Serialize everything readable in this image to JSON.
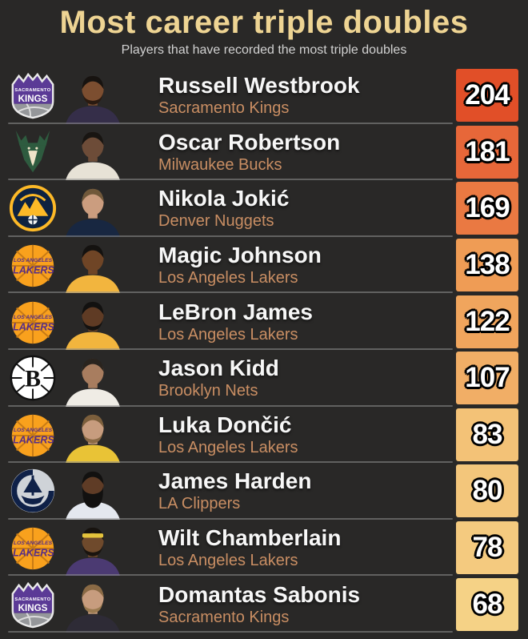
{
  "page": {
    "background_color": "#292827",
    "title_color": "#eed493",
    "subtitle_color": "#d2d2d2",
    "player_name_color": "#f7f7f7",
    "team_name_color": "#c98e63",
    "badge_text_color": "#ffffff"
  },
  "header": {
    "title": "Most career triple doubles",
    "subtitle": "Players that have recorded the most triple doubles"
  },
  "chart_data": {
    "type": "table",
    "title": "Most career triple doubles",
    "subtitle": "Players that have recorded the most triple doubles",
    "columns": [
      "team_logo",
      "player_photo",
      "player",
      "team",
      "career_triple_doubles"
    ],
    "categories": [
      "Russell Westbrook",
      "Oscar Robertson",
      "Nikola Jokić",
      "Magic Johnson",
      "LeBron James",
      "Jason Kidd",
      "Luka Dončić",
      "James Harden",
      "Wilt Chamberlain",
      "Domantas Sabonis"
    ],
    "values": [
      204,
      181,
      169,
      138,
      122,
      107,
      83,
      80,
      78,
      68
    ],
    "rows": [
      {
        "rank": 1,
        "player": "Russell Westbrook",
        "team": "Sacramento Kings",
        "career_triple_doubles": "204",
        "badge_color": "#e14f28",
        "team_logo": "sacramento-kings",
        "avatar": {
          "skin": "#7c4e30",
          "hair": "#171310",
          "jersey": "#352e49",
          "beard": "#2a1a10",
          "headband": null,
          "big_beard": false
        }
      },
      {
        "rank": 2,
        "player": "Oscar Robertson",
        "team": "Milwaukee Bucks",
        "career_triple_doubles": "181",
        "badge_color": "#e76739",
        "team_logo": "milwaukee-bucks",
        "avatar": {
          "skin": "#6d4c38",
          "hair": "#181512",
          "jersey": "#e7e2d6",
          "beard": null,
          "headband": null,
          "big_beard": false
        }
      },
      {
        "rank": 3,
        "player": "Nikola Jokić",
        "team": "Denver Nuggets",
        "career_triple_doubles": "169",
        "badge_color": "#ea7942",
        "team_logo": "denver-nuggets",
        "avatar": {
          "skin": "#cb9d7f",
          "hair": "#70583a",
          "jersey": "#182741",
          "beard": null,
          "headband": null,
          "big_beard": false
        }
      },
      {
        "rank": 4,
        "player": "Magic Johnson",
        "team": "Los Angeles Lakers",
        "career_triple_doubles": "138",
        "badge_color": "#ef9c55",
        "team_logo": "los-angeles-lakers",
        "avatar": {
          "skin": "#6f4526",
          "hair": "#141210",
          "jersey": "#f2b53e",
          "beard": null,
          "headband": null,
          "big_beard": false
        }
      },
      {
        "rank": 5,
        "player": "LeBron James",
        "team": "Los Angeles Lakers",
        "career_triple_doubles": "122",
        "badge_color": "#f0a55d",
        "team_logo": "los-angeles-lakers",
        "avatar": {
          "skin": "#5f3b24",
          "hair": "#121110",
          "jersey": "#f2b53e",
          "beard": "#141210",
          "headband": null,
          "big_beard": false
        }
      },
      {
        "rank": 6,
        "player": "Jason Kidd",
        "team": "Brooklyn Nets",
        "career_triple_doubles": "107",
        "badge_color": "#f1ae66",
        "team_logo": "brooklyn-nets",
        "avatar": {
          "skin": "#a87d5f",
          "hair": "#2a241e",
          "jersey": "#efece5",
          "beard": null,
          "headband": null,
          "big_beard": false
        }
      },
      {
        "rank": 7,
        "player": "Luka Dončić",
        "team": "Los Angeles Lakers",
        "career_triple_doubles": "83",
        "badge_color": "#f3c277",
        "team_logo": "los-angeles-lakers",
        "avatar": {
          "skin": "#c79c7e",
          "hair": "#7c5f3c",
          "jersey": "#e9c336",
          "beard": "#8a6a45",
          "headband": null,
          "big_beard": false
        }
      },
      {
        "rank": 8,
        "player": "James Harden",
        "team": "LA Clippers",
        "career_triple_doubles": "80",
        "badge_color": "#f3c67b",
        "team_logo": "la-clippers",
        "avatar": {
          "skin": "#5f3c26",
          "hair": "#121110",
          "jersey": "#e4e8ef",
          "beard": "#121110",
          "headband": null,
          "big_beard": true
        }
      },
      {
        "rank": 9,
        "player": "Wilt Chamberlain",
        "team": "Los Angeles Lakers",
        "career_triple_doubles": "78",
        "badge_color": "#f4ca7f",
        "team_logo": "los-angeles-lakers",
        "avatar": {
          "skin": "#6f4a2c",
          "hair": "#17130f",
          "jersey": "#4b3a72",
          "beard": "#1a140f",
          "headband": "#e4c33c",
          "big_beard": false
        }
      },
      {
        "rank": 10,
        "player": "Domantas Sabonis",
        "team": "Sacramento Kings",
        "career_triple_doubles": "68",
        "badge_color": "#f5d286",
        "team_logo": "sacramento-kings",
        "avatar": {
          "skin": "#c79c7e",
          "hair": "#8a6a45",
          "jersey": "#2e2b36",
          "beard": "#9a7a50",
          "headband": null,
          "big_beard": false
        }
      }
    ]
  }
}
